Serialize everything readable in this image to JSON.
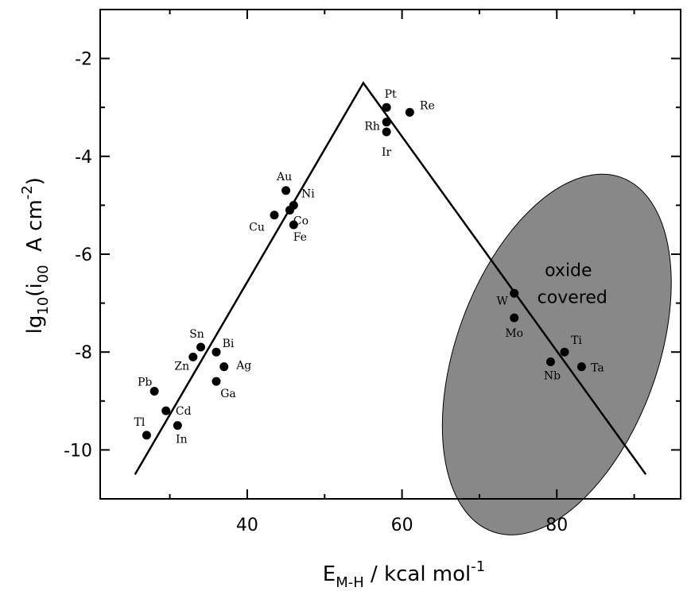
{
  "chart_data": {
    "type": "scatter",
    "xlabel": {
      "main": "E",
      "sub": "M-H",
      "rest": " / kcal mol",
      "sup": "-1"
    },
    "ylabel": {
      "pre": "lg",
      "sub1": "10",
      "mid": "(i",
      "sub2": "00",
      "post": "  A cm",
      "sup": "-2",
      "end": ")"
    },
    "xlim": [
      21,
      96
    ],
    "ylim": [
      -11,
      -1
    ],
    "x_ticks": [
      40,
      60,
      80
    ],
    "y_ticks": [
      -2,
      -4,
      -6,
      -8,
      -10
    ],
    "grid": false,
    "points": [
      {
        "name": "Pt",
        "x": 58.0,
        "y": -3.0
      },
      {
        "name": "Re",
        "x": 61.0,
        "y": -3.1
      },
      {
        "name": "Rh",
        "x": 58.0,
        "y": -3.3
      },
      {
        "name": "Ir",
        "x": 58.0,
        "y": -3.5
      },
      {
        "name": "Au",
        "x": 45.0,
        "y": -4.7
      },
      {
        "name": "Ni",
        "x": 46.0,
        "y": -5.0
      },
      {
        "name": "Cu",
        "x": 43.5,
        "y": -5.2
      },
      {
        "name": "Co",
        "x": 45.5,
        "y": -5.1
      },
      {
        "name": "Fe",
        "x": 46.0,
        "y": -5.4
      },
      {
        "name": "Sn",
        "x": 34.0,
        "y": -7.9
      },
      {
        "name": "Bi",
        "x": 36.0,
        "y": -8.0
      },
      {
        "name": "Zn",
        "x": 33.0,
        "y": -8.1
      },
      {
        "name": "Ag",
        "x": 37.0,
        "y": -8.3
      },
      {
        "name": "Ga",
        "x": 36.0,
        "y": -8.6
      },
      {
        "name": "Pb",
        "x": 28.0,
        "y": -8.8
      },
      {
        "name": "Cd",
        "x": 29.5,
        "y": -9.2
      },
      {
        "name": "Tl",
        "x": 27.0,
        "y": -9.7
      },
      {
        "name": "In",
        "x": 31.0,
        "y": -9.5
      },
      {
        "name": "W",
        "x": 74.5,
        "y": -6.8
      },
      {
        "name": "Mo",
        "x": 74.5,
        "y": -7.3
      },
      {
        "name": "Ti",
        "x": 81.0,
        "y": -8.0
      },
      {
        "name": "Nb",
        "x": 79.2,
        "y": -8.2
      },
      {
        "name": "Ta",
        "x": 83.2,
        "y": -8.3
      }
    ],
    "volcano_line": [
      {
        "x": 25.5,
        "y": -10.5
      },
      {
        "x": 55.0,
        "y": -2.5
      },
      {
        "x": 91.5,
        "y": -10.5
      }
    ],
    "region": {
      "label_line1": "oxide",
      "label_line2": "covered",
      "center": {
        "x": 80.0,
        "y": -8.05
      },
      "radius": {
        "x": 13.0,
        "y": 3.85
      },
      "color": "#888888"
    }
  }
}
